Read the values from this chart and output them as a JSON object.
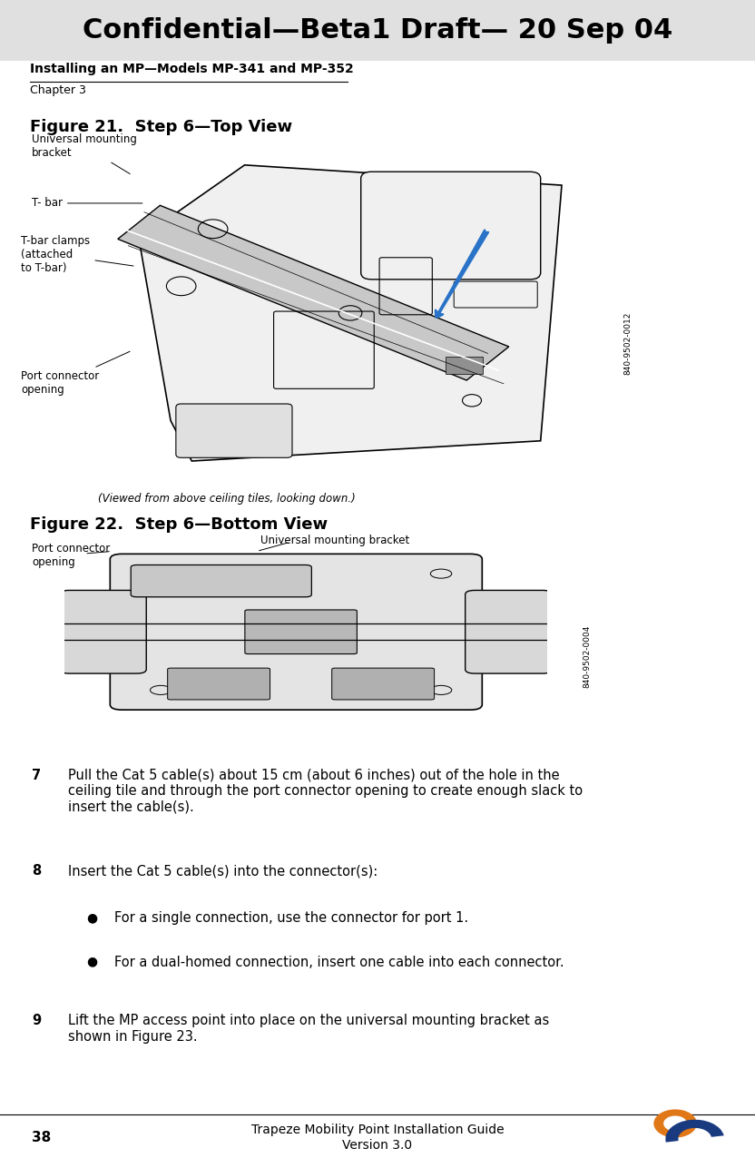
{
  "page_width": 8.32,
  "page_height": 12.87,
  "dpi": 100,
  "bg_color": "#ffffff",
  "header_bg": "#e0e0e0",
  "header_text": "Confidential—Beta1 Draft— 20 Sep 04",
  "header_text_color": "#000000",
  "header_font_size": 22,
  "subheader_bold": "Installing an MP—Models MP-341 and MP-352",
  "subheader_chapter": "Chapter 3",
  "fig21_title": "Figure 21.  Step 6—Top View",
  "fig22_title": "Figure 22.  Step 6—Bottom View",
  "fig21_caption": "(Viewed from above ceiling tiles, looking down.)",
  "fig21_partnum": "840-9502-0012",
  "fig22_partnum": "840-9502-0004",
  "step7_num": "7",
  "step7_text": "Pull the Cat 5 cable(s) about 15 cm (about 6 inches) out of the hole in the ceiling tile and through the port connector opening to create enough slack to insert the cable(s).",
  "step8_num": "8",
  "step8_text": "Insert the Cat 5 cable(s) into the connector(s):",
  "bullet1": "For a single connection, use the connector for port 1.",
  "bullet2": "For a dual-homed connection, insert one cable into each connector.",
  "step9_num": "9",
  "step9_text": "Lift the MP access point into place on the universal mounting bracket as shown in Figure 23.",
  "footer_page": "38",
  "footer_center": "Trapeze Mobility Point Installation Guide\nVersion 3.0",
  "body_font_size": 11,
  "label_font_size": 9,
  "step_font_size": 11
}
